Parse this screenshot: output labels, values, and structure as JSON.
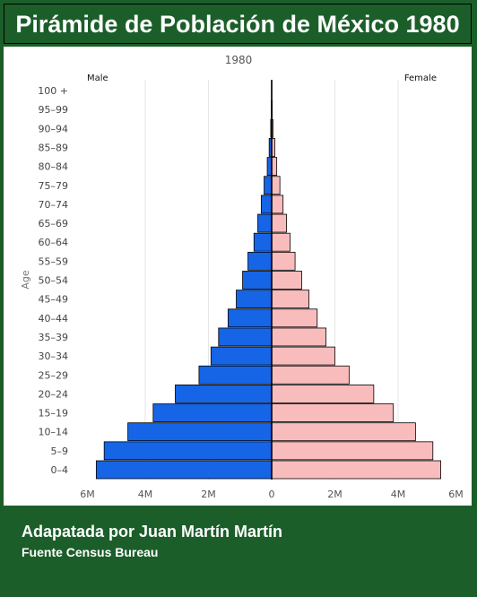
{
  "header": {
    "title": "Pirámide de Población de México 1980"
  },
  "footer": {
    "credit": "Adapatada por Juan Martín Martín",
    "source": "Fuente Census Bureau"
  },
  "chart_data": {
    "type": "bar",
    "orientation": "horizontal-pyramid",
    "title": "1980",
    "ylabel": "Age",
    "categories": [
      "0-4",
      "5-9",
      "10-14",
      "15-19",
      "20-24",
      "25-29",
      "30-34",
      "35-39",
      "40-44",
      "45-49",
      "50-54",
      "55-59",
      "60-64",
      "65-69",
      "70-74",
      "75-79",
      "80-84",
      "85-89",
      "90-94",
      "95-99",
      "100 +"
    ],
    "series": [
      {
        "name": "Male",
        "values": [
          5.55,
          5.3,
          4.55,
          3.75,
          3.05,
          2.3,
          1.92,
          1.68,
          1.38,
          1.12,
          0.92,
          0.75,
          0.56,
          0.44,
          0.33,
          0.24,
          0.14,
          0.08,
          0.03,
          0.01,
          0.005
        ]
      },
      {
        "name": "Female",
        "values": [
          5.35,
          5.1,
          4.55,
          3.85,
          3.23,
          2.45,
          2.0,
          1.72,
          1.44,
          1.18,
          0.95,
          0.74,
          0.58,
          0.47,
          0.36,
          0.26,
          0.16,
          0.1,
          0.04,
          0.015,
          0.005
        ]
      }
    ],
    "units": "millions",
    "xticks": [
      "6M",
      "4M",
      "2M",
      "0",
      "2M",
      "4M",
      "6M"
    ],
    "xlim": [
      -6,
      6
    ],
    "grid": true,
    "legend": "top corners",
    "colors": {
      "male": "#1565e6",
      "female": "#f9bcbc",
      "gridline": "#e6e6e6",
      "axis": "#000000"
    }
  }
}
